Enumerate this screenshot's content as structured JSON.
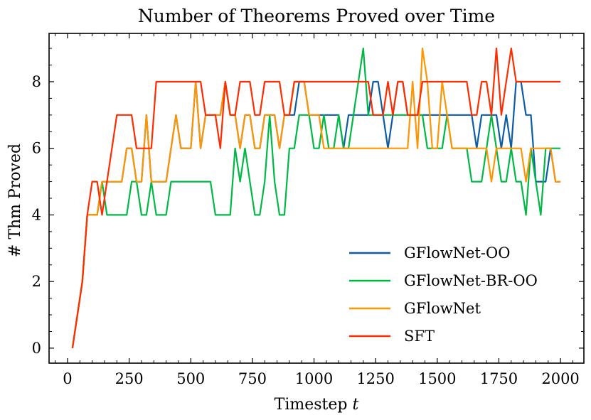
{
  "chart_data": {
    "type": "line",
    "title": "Number of Theorems Proved over Time",
    "xlabel": "Timestep t",
    "xlabel_main": "Timestep ",
    "xlabel_var": "t",
    "ylabel": "# Thm Proved",
    "xlim": [
      -75,
      2095
    ],
    "ylim": [
      -0.45,
      9.45
    ],
    "xticks": [
      0,
      250,
      500,
      750,
      1000,
      1250,
      1500,
      1750,
      2000
    ],
    "yticks": [
      0,
      2,
      4,
      6,
      8
    ],
    "legend_position": "lower-right",
    "x": [
      20,
      60,
      80,
      100,
      120,
      140,
      160,
      180,
      200,
      220,
      240,
      260,
      280,
      300,
      320,
      340,
      360,
      380,
      400,
      420,
      440,
      460,
      480,
      500,
      520,
      540,
      560,
      580,
      600,
      620,
      640,
      660,
      680,
      700,
      720,
      740,
      760,
      780,
      800,
      820,
      840,
      860,
      880,
      900,
      920,
      940,
      960,
      980,
      1000,
      1020,
      1040,
      1060,
      1080,
      1100,
      1120,
      1140,
      1160,
      1180,
      1200,
      1220,
      1240,
      1260,
      1280,
      1300,
      1320,
      1340,
      1360,
      1380,
      1400,
      1420,
      1440,
      1460,
      1480,
      1500,
      1520,
      1540,
      1560,
      1580,
      1600,
      1620,
      1640,
      1660,
      1680,
      1700,
      1720,
      1740,
      1760,
      1780,
      1800,
      1820,
      1840,
      1860,
      1880,
      1900,
      1920,
      1940,
      1960,
      1980,
      2000
    ],
    "series": [
      {
        "name": "GFlowNet-OO",
        "color": "#0c5da5",
        "values": [
          0,
          2,
          4,
          4,
          4,
          5,
          5,
          5,
          5,
          5,
          6,
          6,
          5,
          5,
          7,
          5,
          5,
          5,
          5,
          6,
          7,
          6,
          6,
          6,
          8,
          6,
          7,
          7,
          7,
          7,
          8,
          7,
          7,
          6,
          7,
          7,
          6,
          6,
          7,
          7,
          7,
          6,
          7,
          7,
          7,
          8,
          8,
          7,
          7,
          7,
          7,
          7,
          7,
          7,
          6,
          7,
          7,
          7,
          7,
          7,
          8,
          8,
          7,
          6,
          7,
          8,
          8,
          7,
          7,
          7,
          7,
          7,
          7,
          7,
          7,
          7,
          7,
          7,
          7,
          7,
          7,
          6,
          7,
          7,
          7,
          7,
          6,
          7,
          6,
          8,
          8,
          7,
          7,
          5,
          5,
          5,
          6,
          5,
          5
        ]
      },
      {
        "name": "GFlowNet-BR-OO",
        "color": "#00b945",
        "values": [
          0,
          2,
          4,
          4,
          4,
          5,
          4,
          4,
          4,
          4,
          4,
          5,
          5,
          4,
          4,
          5,
          4,
          4,
          4,
          5,
          5,
          5,
          5,
          5,
          5,
          5,
          5,
          5,
          4,
          4,
          4,
          4,
          6,
          5,
          6,
          5,
          4,
          4,
          5,
          7,
          5,
          4,
          4,
          6,
          6,
          7,
          7,
          7,
          6,
          6,
          7,
          6,
          6,
          7,
          6,
          6,
          7,
          8,
          9,
          7,
          7,
          7,
          7,
          7,
          7,
          7,
          7,
          7,
          7,
          7,
          7,
          6,
          6,
          6,
          6,
          7,
          6,
          6,
          6,
          6,
          5,
          5,
          5,
          6,
          7,
          6,
          5,
          5,
          6,
          5,
          5,
          4,
          6,
          5,
          4,
          6,
          6,
          6,
          6
        ]
      },
      {
        "name": "GFlowNet",
        "color": "#ff9500",
        "values": [
          0,
          2,
          4,
          4,
          4,
          5,
          5,
          5,
          5,
          5,
          6,
          6,
          5,
          5,
          7,
          5,
          5,
          5,
          5,
          6,
          7,
          6,
          6,
          6,
          8,
          6,
          7,
          7,
          7,
          7,
          8,
          7,
          7,
          6,
          7,
          7,
          6,
          6,
          7,
          7,
          7,
          6,
          7,
          7,
          8,
          8,
          8,
          7,
          7,
          7,
          6,
          6,
          6,
          6,
          6,
          6,
          6,
          6,
          6,
          6,
          6,
          6,
          6,
          6,
          6,
          6,
          6,
          6,
          8,
          6,
          9,
          8,
          6,
          6,
          8,
          7,
          6,
          6,
          6,
          6,
          6,
          6,
          6,
          6,
          5,
          6,
          6,
          6,
          6,
          6,
          6,
          5,
          6,
          6,
          6,
          6,
          6,
          5,
          5
        ]
      },
      {
        "name": "SFT",
        "color": "#ff2c00",
        "values": [
          0,
          2,
          4,
          5,
          5,
          4,
          5,
          6,
          7,
          7,
          7,
          7,
          6,
          6,
          6,
          6,
          8,
          8,
          8,
          8,
          8,
          8,
          8,
          8,
          8,
          8,
          7,
          7,
          7,
          6,
          8,
          7,
          7,
          8,
          8,
          8,
          7,
          7,
          8,
          8,
          8,
          8,
          7,
          7,
          8,
          8,
          8,
          8,
          8,
          8,
          8,
          8,
          8,
          8,
          8,
          8,
          8,
          8,
          8,
          8,
          7,
          7,
          7,
          8,
          7,
          8,
          8,
          7,
          7,
          7,
          8,
          8,
          8,
          8,
          8,
          8,
          8,
          8,
          8,
          8,
          7,
          7,
          8,
          8,
          7,
          9,
          7,
          8,
          9,
          8,
          8,
          8,
          8,
          8,
          8,
          8,
          8,
          8,
          8
        ]
      }
    ]
  }
}
